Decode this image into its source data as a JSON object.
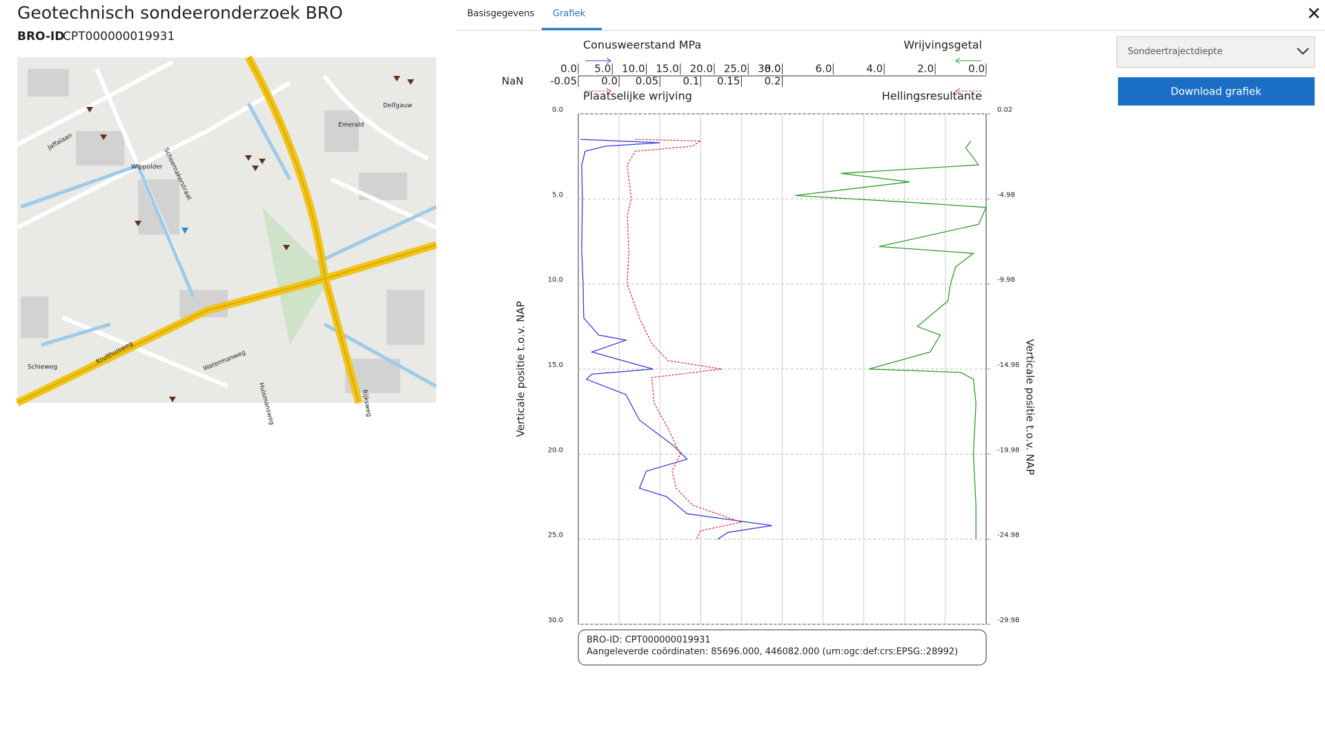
{
  "header": {
    "title": "Geotechnisch sondeeronderzoek BRO",
    "id_label": "BRO-ID",
    "id_value": "CPT000000019931"
  },
  "tabs": [
    "Basisgegevens",
    "Grafiek"
  ],
  "close": "✕",
  "dropdown": "Sondeertrajectdiepte",
  "button": "Download grafiek",
  "map": {
    "labels": [
      "Jaffalaan",
      "Wippolder",
      "Schoemakerstraat",
      "Emerald",
      "Delfgauw",
      "Kruithuisweg",
      "Schieweg",
      "Watermanweg",
      "Huismansweg",
      "Rijksweg"
    ]
  },
  "chart": {
    "type": "cpt-profile",
    "nan_label": "NaN",
    "y_label": "Verticale positie t.o.v. NAP",
    "y2_label": "Verticale positie t.o.v. NAP",
    "ylim": [
      0,
      30
    ],
    "yticks": [
      {
        "value": 0,
        "label": "0.0"
      },
      {
        "value": 5,
        "label": "5.0"
      },
      {
        "value": 10,
        "label": "10.0"
      },
      {
        "value": 15,
        "label": "15.0"
      },
      {
        "value": 20,
        "label": "20.0"
      },
      {
        "value": 25,
        "label": "25.0"
      },
      {
        "value": 30,
        "label": "30.0"
      }
    ],
    "y2lim": [
      0.02,
      -29.98
    ],
    "y2ticks": [
      0.02,
      -4.98,
      -9.98,
      -14.98,
      -19.98,
      -24.98,
      -29.98
    ],
    "series": [
      {
        "name": "Conusweerstand MPa",
        "color": "#3b3bd6",
        "position": "top-left",
        "xlim": [
          0,
          30
        ],
        "xticks": [
          {
            "value": 0,
            "label": "0.0"
          },
          {
            "value": 5,
            "label": "5.0"
          },
          {
            "value": 10,
            "label": "10.0"
          },
          {
            "value": 15,
            "label": "15.0"
          },
          {
            "value": 20,
            "label": "20.0"
          },
          {
            "value": 25,
            "label": "25.0"
          },
          {
            "value": 30,
            "label": "30.0"
          }
        ],
        "depth": [
          1.5,
          1.7,
          1.9,
          2.2,
          3,
          5,
          8,
          10,
          12,
          13,
          13.3,
          14,
          15,
          15.3,
          15.6,
          16.5,
          18,
          19.5,
          20.3,
          21,
          22,
          22.5,
          23.5,
          24.2,
          24.6,
          25
        ],
        "values": [
          0.3,
          12,
          4,
          1,
          0.5,
          0.6,
          0.5,
          0.7,
          0.8,
          3,
          7,
          2,
          11,
          2,
          1.2,
          7,
          9,
          14,
          16,
          10,
          9,
          13,
          16,
          28.5,
          22,
          20.5
        ]
      },
      {
        "name": "Plaatselijke wrijving",
        "color": "#e03030",
        "position": "bottom-left",
        "dashed": true,
        "xlim": [
          -0.05,
          0.2
        ],
        "xticks": [
          -0.05,
          {
            "value": 0,
            "label": "0.0"
          },
          0.05,
          0.1,
          0.15,
          0.2
        ],
        "depth": [
          1.5,
          1.6,
          1.9,
          2.2,
          3,
          5,
          6,
          8,
          10,
          12,
          13,
          13.5,
          14.5,
          15,
          15.5,
          17,
          18.5,
          20,
          21,
          22,
          23,
          24,
          24.5,
          25
        ],
        "values": [
          0.02,
          0.1,
          0.09,
          0.02,
          0.01,
          0.015,
          0.01,
          0.012,
          0.01,
          0.025,
          0.035,
          0.04,
          0.06,
          0.126,
          0.04,
          0.043,
          0.06,
          0.075,
          0.065,
          0.07,
          0.09,
          0.15,
          0.1,
          0.095
        ]
      },
      {
        "name": "Wrijvingsgetal",
        "color": "#2e9a2e",
        "position": "top-right",
        "xlim": [
          8,
          0
        ],
        "xticks": [
          {
            "value": 8,
            "label": "8.0"
          },
          {
            "value": 6,
            "label": "6.0"
          },
          {
            "value": 4,
            "label": "4.0"
          },
          {
            "value": 2,
            "label": "2.0"
          },
          {
            "value": 0,
            "label": "0.0"
          }
        ],
        "depth": [
          1.6,
          2,
          3,
          3.5,
          4,
          4.8,
          5.2,
          5.5,
          6.5,
          7.8,
          8.2,
          9,
          10,
          11,
          12.5,
          13,
          14,
          15,
          15.2,
          15.6,
          17,
          20,
          23,
          25
        ],
        "values": [
          0.6,
          0.8,
          0.3,
          5.7,
          3,
          7.5,
          3,
          0,
          0.3,
          4.2,
          0.5,
          1.2,
          1.4,
          1.5,
          2.7,
          1.8,
          2.2,
          4.6,
          1,
          0.5,
          0.4,
          0.5,
          0.4,
          0.4
        ]
      },
      {
        "name": "Hellingsresultante",
        "color": "#c0305a",
        "position": "bottom-right",
        "dashed": true
      }
    ],
    "info": [
      "BRO-ID: CPT000000019931",
      "Aangeleverde coördinaten: 85696.000, 446082.000 (urn:ogc:def:crs:EPSG::28992)"
    ]
  }
}
